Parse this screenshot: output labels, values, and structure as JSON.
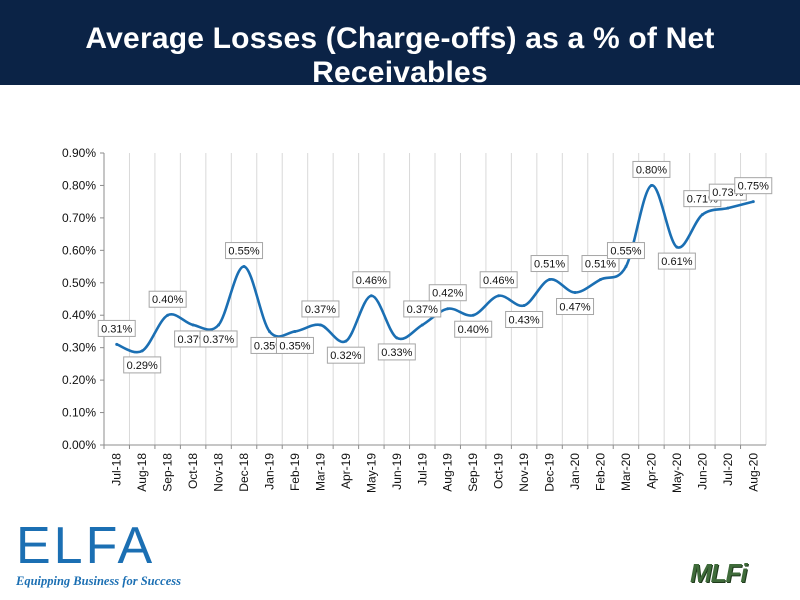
{
  "header": {
    "title": "Average Losses (Charge-offs) as a % of Net Receivables"
  },
  "logos": {
    "elfa": {
      "word": "ELFA",
      "tagline": "Equipping Business for Success"
    },
    "mlfi": {
      "word": "MLFi"
    }
  },
  "colors": {
    "header_bg": "#0b2346",
    "line": "#1b6fb3",
    "brand": "#1b6fb3"
  },
  "chart_data": {
    "type": "line",
    "title": "Average Losses (Charge-offs) as a % of Net Receivables",
    "xlabel": "",
    "ylabel": "",
    "ylim": [
      0,
      0.9
    ],
    "grid": "vertical",
    "categories": [
      "Jul-18",
      "Aug-18",
      "Sep-18",
      "Oct-18",
      "Nov-18",
      "Dec-18",
      "Jan-19",
      "Feb-19",
      "Mar-19",
      "Apr-19",
      "May-19",
      "Jun-19",
      "Jul-19",
      "Aug-19",
      "Sep-19",
      "Oct-19",
      "Nov-19",
      "Dec-19",
      "Jan-20",
      "Feb-20",
      "Mar-20",
      "Apr-20",
      "May-20",
      "Jun-20",
      "Jul-20",
      "Aug-20"
    ],
    "values": [
      0.31,
      0.29,
      0.4,
      0.37,
      0.37,
      0.55,
      0.35,
      0.35,
      0.37,
      0.32,
      0.46,
      0.33,
      0.37,
      0.42,
      0.4,
      0.46,
      0.43,
      0.51,
      0.47,
      0.51,
      0.55,
      0.8,
      0.61,
      0.71,
      0.73,
      0.75
    ],
    "data_labels": [
      "0.31%",
      "0.29%",
      "0.40%",
      "0.37%",
      "0.37%",
      "0.55%",
      "0.35%",
      "0.35%",
      "0.37%",
      "0.32%",
      "0.46%",
      "0.33%",
      "0.37%",
      "0.42%",
      "0.40%",
      "0.46%",
      "0.43%",
      "0.51%",
      "0.47%",
      "0.51%",
      "0.55%",
      "0.80%",
      "0.61%",
      "0.71%",
      "0.73%",
      "0.75%"
    ],
    "y_ticks": [
      "0.00%",
      "0.10%",
      "0.20%",
      "0.30%",
      "0.40%",
      "0.50%",
      "0.60%",
      "0.70%",
      "0.80%",
      "0.90%"
    ]
  }
}
